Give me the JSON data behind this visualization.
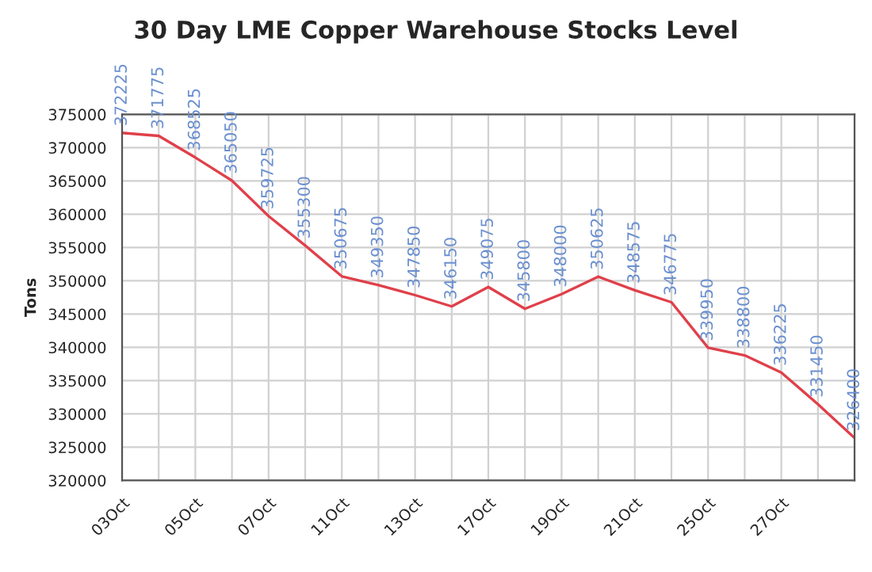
{
  "chart_data": {
    "type": "line",
    "title": "30 Day LME Copper Warehouse Stocks Level",
    "ylabel": "Tons",
    "categories": [
      "03Oct",
      null,
      "05Oct",
      null,
      "07Oct",
      null,
      "11Oct",
      null,
      "13Oct",
      null,
      "17Oct",
      null,
      "19Oct",
      null,
      "21Oct",
      null,
      "25Oct",
      null,
      "27Oct",
      null,
      null
    ],
    "series": [
      {
        "color": "#e0404a",
        "values": [
          372225,
          371775,
          368525,
          365050,
          359725,
          355300,
          350675,
          349350,
          347850,
          346150,
          349075,
          345800,
          348000,
          350625,
          348575,
          346775,
          339950,
          338800,
          336225,
          331450,
          326400
        ]
      }
    ],
    "ylim": [
      320000,
      375000
    ],
    "yticks": [
      320000,
      325000,
      330000,
      335000,
      340000,
      345000,
      350000,
      355000,
      360000,
      365000,
      370000,
      375000
    ],
    "grid": true,
    "data_labels": true,
    "marker": "none",
    "line_style": "solid"
  }
}
